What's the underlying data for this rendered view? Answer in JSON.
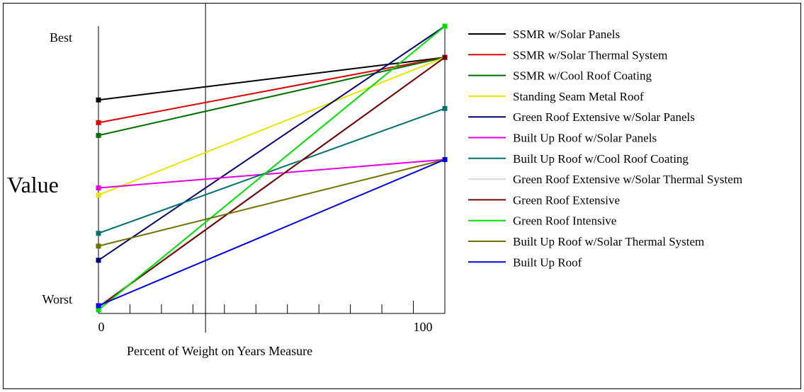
{
  "chart_data": {
    "type": "line",
    "title": "",
    "xlabel": "Percent of Weight on Years Measure",
    "ylabel": "Value",
    "x": [
      0,
      100
    ],
    "x_tick_labels": [
      "0",
      "100"
    ],
    "y_tick_labels": {
      "top": "Best",
      "bottom": "Worst"
    },
    "ylim": [
      0,
      1
    ],
    "xlim": [
      0,
      100
    ],
    "reference_x": 34,
    "legend_position": "right",
    "series": [
      {
        "name": "SSMR w/Solar Panels",
        "color": "#000000",
        "values": [
          0.74,
          0.89
        ]
      },
      {
        "name": "SSMR w/Solar Thermal System",
        "color": "#e00000",
        "values": [
          0.66,
          0.89
        ]
      },
      {
        "name": "SSMR w/Cool Roof Coating",
        "color": "#007000",
        "values": [
          0.615,
          0.89
        ]
      },
      {
        "name": "Standing Seam Metal Roof",
        "color": "#e6e600",
        "values": [
          0.405,
          0.89
        ]
      },
      {
        "name": "Green Roof Extensive w/Solar Panels",
        "color": "#000070",
        "values": [
          0.175,
          1.0
        ]
      },
      {
        "name": "Built Up Roof w/Solar Panels",
        "color": "#e600e6",
        "values": [
          0.43,
          0.53
        ]
      },
      {
        "name": "Built Up Roof w/Cool Roof Coating",
        "color": "#007070",
        "values": [
          0.27,
          0.71
        ]
      },
      {
        "name": "Green Roof Extensive w/Solar Thermal System",
        "color": "#d8d8d8",
        "values": [
          0.015,
          0.89
        ]
      },
      {
        "name": "Green Roof Extensive",
        "color": "#700000",
        "values": [
          0.01,
          0.89
        ]
      },
      {
        "name": "Green Roof Intensive",
        "color": "#00e000",
        "values": [
          0.0,
          1.0
        ]
      },
      {
        "name": "Built Up Roof w/Solar Thermal System",
        "color": "#707000",
        "values": [
          0.225,
          0.53
        ]
      },
      {
        "name": "Built Up Roof",
        "color": "#0000e6",
        "values": [
          0.015,
          0.53
        ]
      }
    ]
  }
}
